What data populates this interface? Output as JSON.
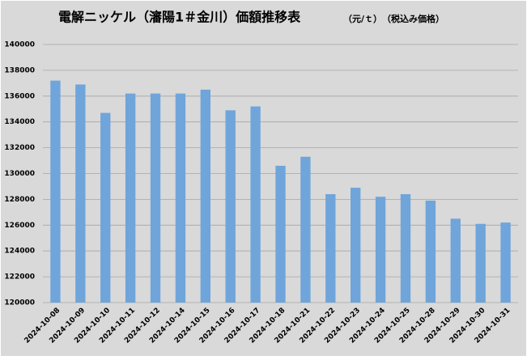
{
  "chart_data": {
    "type": "bar",
    "title": "電解ニッケル（瀋陽1＃金川）価額推移表",
    "subtitle": "（元/ｔ）　（税込み価格）",
    "categories": [
      "2024-10-08",
      "2024-10-09",
      "2024-10-10",
      "2024-10-11",
      "2024-10-12",
      "2024-10-14",
      "2024-10-15",
      "2024-10-16",
      "2024-10-17",
      "2024-10-18",
      "2024-10-21",
      "2024-10-22",
      "2024-10-23",
      "2024-10-24",
      "2024-10-25",
      "2024-10-28",
      "2024-10-29",
      "2024-10-30",
      "2024-10-31"
    ],
    "values": [
      137200,
      136900,
      134700,
      136200,
      136200,
      136200,
      136500,
      134900,
      135200,
      130600,
      131300,
      128400,
      128900,
      128200,
      128400,
      127900,
      126500,
      126100,
      126200
    ],
    "color": "#6fa5da",
    "ylim": [
      120000,
      140000
    ],
    "yticks": [
      120000,
      122000,
      124000,
      126000,
      128000,
      130000,
      132000,
      134000,
      136000,
      138000,
      140000
    ],
    "grid": true
  }
}
